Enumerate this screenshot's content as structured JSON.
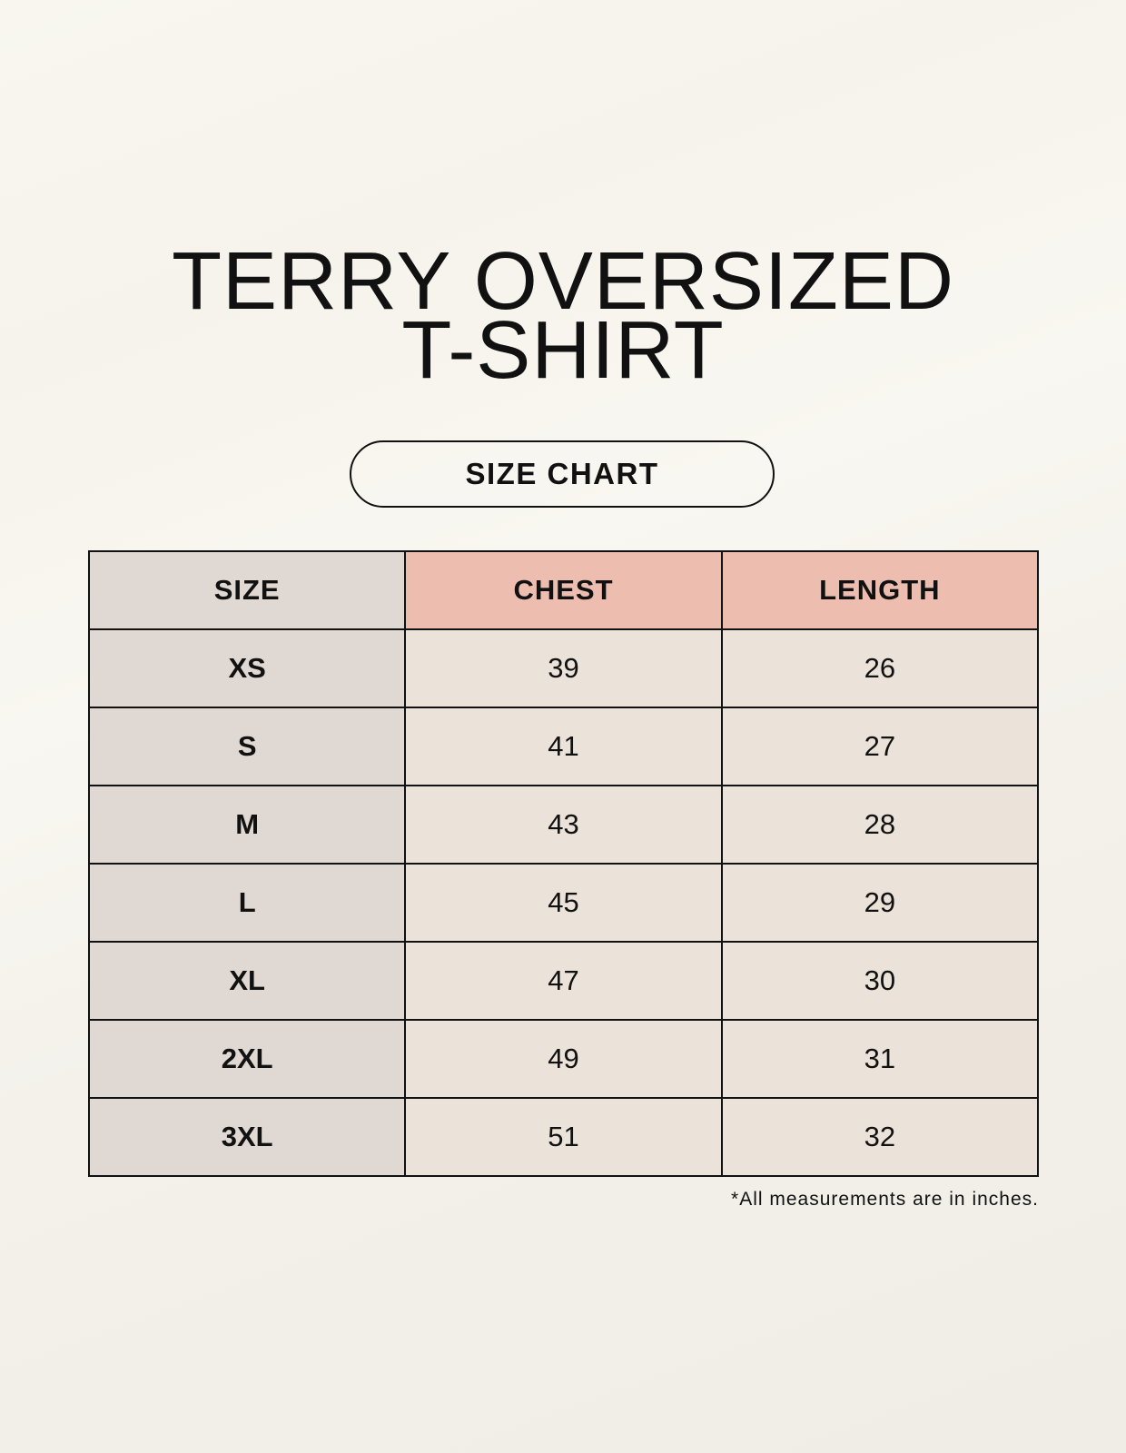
{
  "title": {
    "line1": "TERRY OVERSIZED",
    "line2": "T-SHIRT"
  },
  "badge": "SIZE CHART",
  "table": {
    "headers": [
      "SIZE",
      "CHEST",
      "LENGTH"
    ],
    "rows": [
      [
        "XS",
        "39",
        "26"
      ],
      [
        "S",
        "41",
        "27"
      ],
      [
        "M",
        "43",
        "28"
      ],
      [
        "L",
        "45",
        "29"
      ],
      [
        "XL",
        "47",
        "30"
      ],
      [
        "2XL",
        "49",
        "31"
      ],
      [
        "3XL",
        "51",
        "32"
      ]
    ]
  },
  "note": "*All measurements are in inches.",
  "colors": {
    "size_column": "#e0d8d2",
    "header_accent": "#edbdb0",
    "value_cells": "#ebe3d9"
  }
}
